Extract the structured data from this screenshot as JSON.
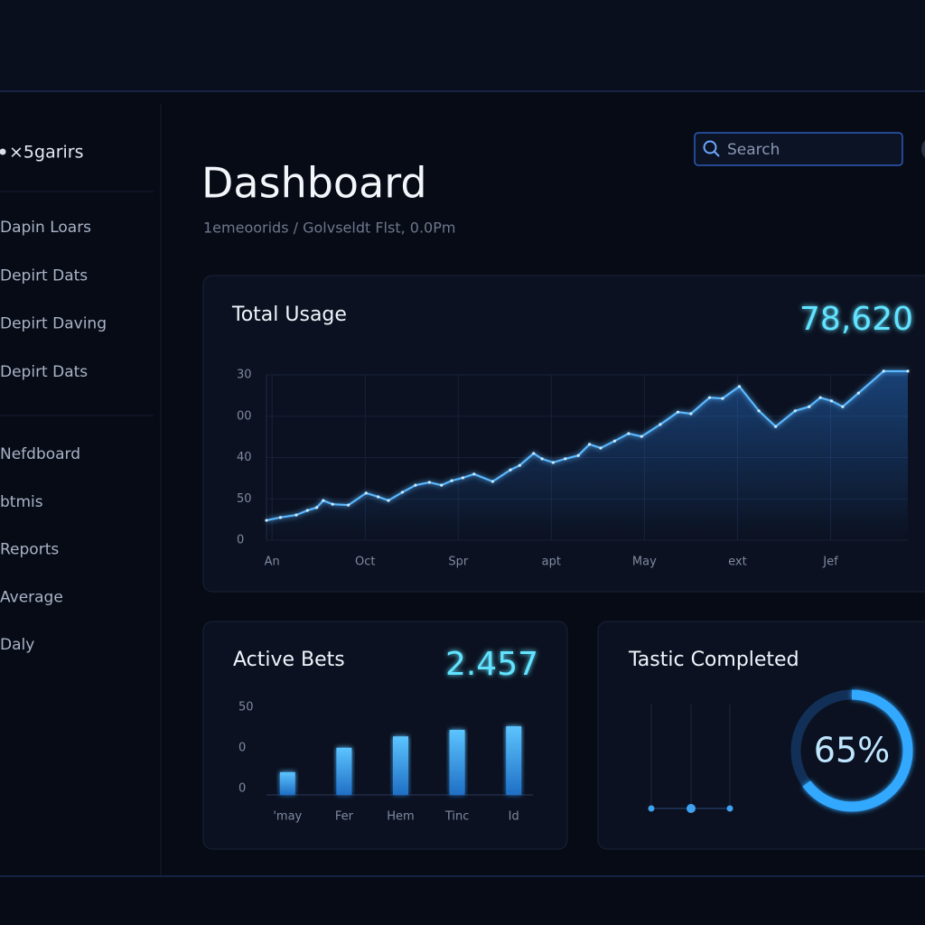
{
  "sidebar": {
    "brand": "×5garirs",
    "groups": [
      [
        "Dapin Loars",
        "Depirt Dats",
        "Depirt Daving",
        "Depirt Dats"
      ],
      [
        "Nefdboard",
        "btmis",
        "Reports",
        "Average",
        "Daly"
      ]
    ]
  },
  "header": {
    "title": "Dashboard",
    "breadcrumb": "1emeoorids / Golvseldt Flst, 0.0Pm",
    "search_placeholder": "Search"
  },
  "chart_data": [
    {
      "type": "line",
      "title": "Total Usage",
      "headline": "78,620",
      "color": "#5ab8ff",
      "x": [
        -0.06,
        0.09,
        0.26,
        0.38,
        0.48,
        0.55,
        0.65,
        0.82,
        1.01,
        1.14,
        1.25,
        1.4,
        1.54,
        1.69,
        1.82,
        1.93,
        2.05,
        2.17,
        2.37,
        2.56,
        2.66,
        2.81,
        2.9,
        3.02,
        3.15,
        3.29,
        3.41,
        3.53,
        3.68,
        3.83,
        3.97,
        4.17,
        4.36,
        4.5,
        4.7,
        4.84,
        5.02,
        5.23,
        5.41,
        5.62,
        5.77,
        5.89,
        6.01,
        6.13,
        6.3,
        6.57,
        6.83
      ],
      "values": [
        0.48,
        0.55,
        0.61,
        0.72,
        0.79,
        0.96,
        0.87,
        0.85,
        1.14,
        1.05,
        0.96,
        1.16,
        1.33,
        1.4,
        1.33,
        1.44,
        1.51,
        1.6,
        1.42,
        1.7,
        1.81,
        2.1,
        1.97,
        1.88,
        1.97,
        2.05,
        2.32,
        2.23,
        2.4,
        2.58,
        2.51,
        2.8,
        3.1,
        3.06,
        3.45,
        3.43,
        3.72,
        3.13,
        2.75,
        3.13,
        3.23,
        3.45,
        3.37,
        3.23,
        3.56,
        4.09,
        4.09
      ],
      "xlim": [
        -0.06,
        6.83
      ],
      "xticks": [
        {
          "value": 0,
          "label": "An"
        },
        {
          "value": 1,
          "label": "Oct"
        },
        {
          "value": 2,
          "label": "Spr"
        },
        {
          "value": 3,
          "label": "apt"
        },
        {
          "value": 4,
          "label": "May"
        },
        {
          "value": 5,
          "label": "ext"
        },
        {
          "value": 6,
          "label": "Jef"
        }
      ],
      "ylim": [
        0,
        4
      ],
      "yticks": [
        0,
        {
          "value": 1,
          "label": "50"
        },
        {
          "value": 2,
          "label": "40"
        },
        {
          "value": 3,
          "label": "00"
        },
        {
          "value": 4,
          "label": "30"
        }
      ],
      "grid": true
    },
    {
      "type": "bar",
      "title": "Active Bets",
      "headline": "2.457",
      "color": "#3fa2f0",
      "categories": [
        "'may",
        "Fer",
        "Hem",
        "Tinc",
        "Id"
      ],
      "values": [
        0.56,
        1.16,
        1.44,
        1.6,
        1.69
      ],
      "ylim": [
        0,
        2.2
      ],
      "yticks": [
        0,
        {
          "value": 1,
          "label": "0"
        },
        {
          "value": 2,
          "label": "50"
        }
      ]
    },
    {
      "type": "gauge",
      "title": "Tastic Completed",
      "color": "#33a8ff",
      "values": [
        65
      ],
      "value_labels": [
        "65%"
      ],
      "ylim": [
        0,
        100
      ]
    }
  ]
}
